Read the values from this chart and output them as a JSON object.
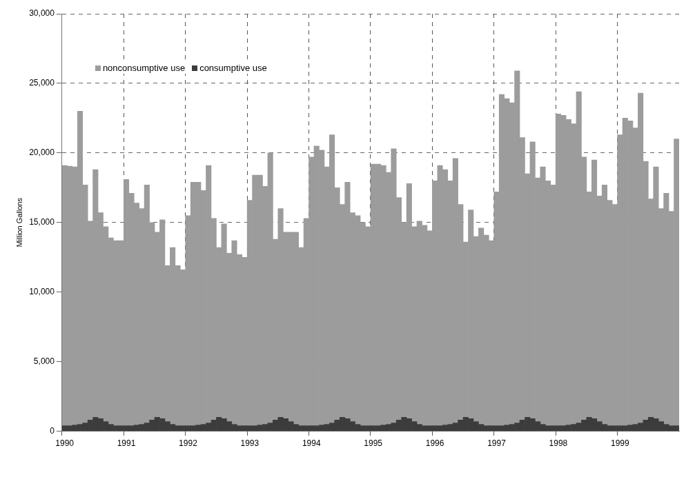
{
  "chart_data": {
    "type": "bar",
    "stacked": true,
    "ylabel": "Million Gallons",
    "categories": [
      "1990",
      null,
      null,
      null,
      null,
      null,
      null,
      null,
      null,
      null,
      null,
      null,
      "1991",
      null,
      null,
      null,
      null,
      null,
      null,
      null,
      null,
      null,
      null,
      null,
      "1992",
      null,
      null,
      null,
      null,
      null,
      null,
      null,
      null,
      null,
      null,
      null,
      "1993",
      null,
      null,
      null,
      null,
      null,
      null,
      null,
      null,
      null,
      null,
      null,
      "1994",
      null,
      null,
      null,
      null,
      null,
      null,
      null,
      null,
      null,
      null,
      null,
      "1995",
      null,
      null,
      null,
      null,
      null,
      null,
      null,
      null,
      null,
      null,
      null,
      "1996",
      null,
      null,
      null,
      null,
      null,
      null,
      null,
      null,
      null,
      null,
      null,
      "1997",
      null,
      null,
      null,
      null,
      null,
      null,
      null,
      null,
      null,
      null,
      null,
      "1998",
      null,
      null,
      null,
      null,
      null,
      null,
      null,
      null,
      null,
      null,
      null,
      "1999",
      null,
      null,
      null,
      null,
      null,
      null,
      null,
      null,
      null,
      null,
      null
    ],
    "series": [
      {
        "name": "consumptive use",
        "color": "#3c3c3c",
        "values": [
          400,
          400,
          450,
          500,
          600,
          800,
          1000,
          900,
          700,
          500,
          400,
          400,
          400,
          400,
          450,
          500,
          600,
          800,
          1000,
          900,
          700,
          500,
          400,
          400,
          400,
          400,
          450,
          500,
          600,
          800,
          1000,
          900,
          700,
          500,
          400,
          400,
          400,
          400,
          450,
          500,
          600,
          800,
          1000,
          900,
          700,
          500,
          400,
          400,
          400,
          400,
          450,
          500,
          600,
          800,
          1000,
          900,
          700,
          500,
          400,
          400,
          400,
          400,
          450,
          500,
          600,
          800,
          1000,
          900,
          700,
          500,
          400,
          400,
          400,
          400,
          450,
          500,
          600,
          800,
          1000,
          900,
          700,
          500,
          400,
          400,
          400,
          400,
          450,
          500,
          600,
          800,
          1000,
          900,
          700,
          500,
          400,
          400,
          400,
          400,
          450,
          500,
          600,
          800,
          1000,
          900,
          700,
          500,
          400,
          400,
          400,
          400,
          450,
          500,
          600,
          800,
          1000,
          900,
          700,
          500,
          400,
          400
        ]
      },
      {
        "name": "nonconsumptive use",
        "color": "#9c9c9c",
        "values": [
          18700,
          18650,
          18550,
          22500,
          17100,
          14300,
          17800,
          14800,
          14000,
          13400,
          13300,
          13300,
          17700,
          16700,
          15950,
          15500,
          17100,
          14200,
          13300,
          14300,
          11200,
          12700,
          11500,
          11200,
          15100,
          17500,
          17450,
          16800,
          18500,
          14500,
          12200,
          14000,
          12100,
          13200,
          12300,
          12100,
          16200,
          18000,
          17950,
          17100,
          19400,
          13000,
          15000,
          13400,
          13600,
          13800,
          12800,
          14900,
          19300,
          20100,
          19750,
          18500,
          20700,
          16700,
          15300,
          17000,
          15000,
          15000,
          14600,
          14300,
          18800,
          18800,
          18650,
          18100,
          19700,
          16000,
          14000,
          16900,
          14000,
          14600,
          14400,
          14000,
          17600,
          18700,
          18350,
          17500,
          19000,
          15500,
          12600,
          15000,
          13300,
          14100,
          13700,
          13300,
          16800,
          23800,
          23450,
          23100,
          25300,
          20300,
          17500,
          19900,
          17500,
          18500,
          17600,
          17300,
          22400,
          22300,
          21950,
          21600,
          23800,
          18900,
          16200,
          18600,
          16200,
          17200,
          16200,
          15900,
          20900,
          22100,
          21850,
          21300,
          23700,
          18600,
          15700,
          18100,
          15300,
          16600,
          15400,
          20600
        ]
      }
    ],
    "ylim": [
      0,
      30000
    ],
    "yticks": [
      {
        "value": 0,
        "label": "0"
      },
      {
        "value": 5000,
        "label": "5,000"
      },
      {
        "value": 10000,
        "label": "10,000"
      },
      {
        "value": 15000,
        "label": "15,000"
      },
      {
        "value": 20000,
        "label": "20,000"
      },
      {
        "value": 25000,
        "label": "25,000"
      },
      {
        "value": 30000,
        "label": "30,000"
      }
    ],
    "grid": true,
    "legend": "top left"
  }
}
